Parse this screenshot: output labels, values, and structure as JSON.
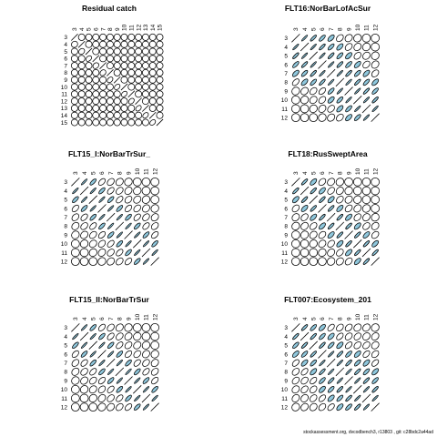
{
  "footer": "stockassessment.org, dvcodbench3, r13803 , git: c28bdc2a44ad",
  "colors": {
    "fill": "#8fc7dc",
    "stroke": "#000000"
  },
  "chart_data": [
    {
      "type": "correlation-matrix",
      "title": "Residual catch",
      "labels": [
        "3",
        "4",
        "5",
        "6",
        "7",
        "8",
        "9",
        "10",
        "11",
        "12",
        "13",
        "14",
        "15"
      ],
      "values": [
        [
          1,
          0,
          0,
          0,
          0,
          0,
          0,
          0,
          0,
          0,
          0,
          0,
          0
        ],
        [
          0.1,
          1,
          0,
          0,
          0,
          0,
          0,
          0,
          0,
          0,
          0,
          0,
          0
        ],
        [
          0,
          0.2,
          1,
          0,
          0,
          0,
          0,
          0,
          0,
          0,
          0,
          0,
          0
        ],
        [
          0,
          0,
          0.3,
          1,
          0,
          0,
          0,
          0,
          0,
          0,
          0,
          0,
          0
        ],
        [
          0,
          0,
          0,
          0.2,
          1,
          0,
          0,
          0,
          0,
          0,
          0,
          0,
          0
        ],
        [
          0,
          0,
          0,
          0,
          0.2,
          1,
          0,
          0,
          0,
          0,
          0,
          0,
          0
        ],
        [
          0,
          0,
          0,
          0,
          0,
          0.3,
          1,
          0,
          0,
          0,
          0,
          0,
          0
        ],
        [
          0,
          0,
          0,
          0,
          0,
          0,
          0.3,
          1,
          0,
          0,
          0,
          0,
          0
        ],
        [
          0,
          0,
          0,
          0,
          0,
          0,
          0,
          0.3,
          1,
          0,
          0,
          0,
          0
        ],
        [
          0,
          0,
          0,
          0,
          0,
          0,
          0,
          0,
          0.3,
          1,
          0,
          0,
          0
        ],
        [
          0,
          0,
          0,
          0,
          0,
          0,
          0,
          0,
          0,
          0.3,
          1,
          0,
          0
        ],
        [
          0,
          0,
          0,
          0,
          0,
          0,
          0,
          0,
          0,
          0,
          0.3,
          1,
          0
        ],
        [
          0,
          0,
          0,
          0,
          0,
          0,
          0,
          0,
          0,
          0,
          0,
          0.3,
          1
        ]
      ]
    },
    {
      "type": "correlation-matrix",
      "title": "FLT16:NorBarLofAcSur",
      "labels": [
        "3",
        "4",
        "5",
        "6",
        "7",
        "8",
        "9",
        "10",
        "11",
        "12"
      ],
      "values": [
        [
          1,
          0.8,
          0.7,
          0.6,
          0.5,
          0.3,
          0.2,
          0.1,
          0,
          0
        ],
        [
          0.8,
          1,
          0.8,
          0.7,
          0.6,
          0.5,
          0.3,
          0.2,
          0.1,
          0
        ],
        [
          0.7,
          0.8,
          1,
          0.8,
          0.7,
          0.6,
          0.5,
          0.3,
          0.2,
          0.1
        ],
        [
          0.6,
          0.7,
          0.8,
          1,
          0.8,
          0.7,
          0.6,
          0.5,
          0.3,
          0.2
        ],
        [
          0.5,
          0.6,
          0.7,
          0.8,
          1,
          0.8,
          0.7,
          0.6,
          0.5,
          0.3
        ],
        [
          0.4,
          0.5,
          0.6,
          0.7,
          0.8,
          1,
          0.8,
          0.7,
          0.6,
          0.5
        ],
        [
          0.1,
          0.2,
          0.3,
          0.4,
          0.6,
          0.8,
          1,
          0.8,
          0.7,
          0.6
        ],
        [
          0,
          0.1,
          0.2,
          0.3,
          0.5,
          0.6,
          0.8,
          1,
          0.8,
          0.7
        ],
        [
          0,
          0,
          0.1,
          0.2,
          0.3,
          0.5,
          0.6,
          0.8,
          1,
          0.8
        ],
        [
          0,
          0,
          0,
          0.1,
          0.2,
          0.3,
          0.5,
          0.6,
          0.8,
          1
        ]
      ]
    },
    {
      "type": "correlation-matrix",
      "title": "FLT15_I:NorBarTrSur_",
      "labels": [
        "3",
        "4",
        "5",
        "6",
        "7",
        "8",
        "9",
        "10",
        "11",
        "12"
      ],
      "values": [
        [
          1,
          0.8,
          0.6,
          0.4,
          0.3,
          0.2,
          0.1,
          0,
          0,
          0
        ],
        [
          0.8,
          1,
          0.8,
          0.6,
          0.4,
          0.3,
          0.2,
          0.1,
          0,
          0
        ],
        [
          0.6,
          0.8,
          1,
          0.8,
          0.6,
          0.4,
          0.3,
          0.2,
          0.1,
          0
        ],
        [
          0.4,
          0.6,
          0.8,
          1,
          0.8,
          0.6,
          0.4,
          0.3,
          0.2,
          0.1
        ],
        [
          0.3,
          0.4,
          0.6,
          0.8,
          1,
          0.8,
          0.6,
          0.4,
          0.3,
          0.2
        ],
        [
          0.2,
          0.3,
          0.4,
          0.6,
          0.8,
          1,
          0.8,
          0.6,
          0.4,
          0.3
        ],
        [
          0.1,
          0.2,
          0.3,
          0.4,
          0.6,
          0.8,
          1,
          0.8,
          0.6,
          0.4
        ],
        [
          0,
          0.1,
          0.2,
          0.3,
          0.4,
          0.6,
          0.8,
          1,
          0.8,
          0.6
        ],
        [
          0,
          0,
          0.1,
          0.2,
          0.3,
          0.4,
          0.6,
          0.8,
          1,
          0.8
        ],
        [
          0,
          0,
          0,
          0.1,
          0.2,
          0.3,
          0.4,
          0.6,
          0.8,
          1
        ]
      ]
    },
    {
      "type": "correlation-matrix",
      "title": "FLT18:RusSweptArea",
      "labels": [
        "3",
        "4",
        "5",
        "6",
        "7",
        "8",
        "9",
        "10",
        "11",
        "12"
      ],
      "values": [
        [
          1,
          0.7,
          0.5,
          0.3,
          0.2,
          0.1,
          0,
          0,
          0,
          0
        ],
        [
          0.7,
          1,
          0.7,
          0.5,
          0.3,
          0.2,
          0.1,
          0,
          0,
          0
        ],
        [
          0.5,
          0.7,
          1,
          0.7,
          0.5,
          0.3,
          0.2,
          0.1,
          0,
          0
        ],
        [
          0.3,
          0.5,
          0.7,
          1,
          0.7,
          0.5,
          0.3,
          0.2,
          0.1,
          0
        ],
        [
          0.2,
          0.3,
          0.5,
          0.7,
          1,
          0.7,
          0.5,
          0.3,
          0.2,
          0.1
        ],
        [
          0.1,
          0.2,
          0.3,
          0.5,
          0.7,
          1,
          0.7,
          0.5,
          0.3,
          0.2
        ],
        [
          0,
          0.1,
          0.2,
          0.3,
          0.5,
          0.7,
          1,
          0.7,
          0.5,
          0.3
        ],
        [
          0,
          0,
          0.1,
          0.2,
          0.3,
          0.5,
          0.7,
          1,
          0.7,
          0.5
        ],
        [
          0,
          0,
          0,
          0.1,
          0.2,
          0.3,
          0.5,
          0.7,
          1,
          0.7
        ],
        [
          0,
          0,
          0,
          0,
          0.1,
          0.2,
          0.3,
          0.5,
          0.7,
          1
        ]
      ]
    },
    {
      "type": "correlation-matrix",
      "title": "FLT15_II:NorBarTrSur",
      "labels": [
        "3",
        "4",
        "5",
        "6",
        "7",
        "8",
        "9",
        "10",
        "11",
        "12"
      ],
      "values": [
        [
          1,
          0.8,
          0.6,
          0.4,
          0.3,
          0.2,
          0.1,
          0,
          0,
          0
        ],
        [
          0.8,
          1,
          0.8,
          0.6,
          0.4,
          0.3,
          0.2,
          0.1,
          0,
          0
        ],
        [
          0.6,
          0.8,
          1,
          0.8,
          0.6,
          0.4,
          0.3,
          0.2,
          0.1,
          0
        ],
        [
          0.4,
          0.6,
          0.8,
          1,
          0.8,
          0.6,
          0.4,
          0.3,
          0.2,
          0.1
        ],
        [
          0.3,
          0.4,
          0.6,
          0.8,
          1,
          0.8,
          0.6,
          0.4,
          0.3,
          0.2
        ],
        [
          0.2,
          0.3,
          0.4,
          0.6,
          0.8,
          1,
          0.8,
          0.6,
          0.4,
          0.3
        ],
        [
          0.1,
          0.2,
          0.3,
          0.4,
          0.6,
          0.8,
          1,
          0.8,
          0.6,
          0.4
        ],
        [
          0,
          0.1,
          0.2,
          0.3,
          0.4,
          0.6,
          0.8,
          1,
          0.8,
          0.6
        ],
        [
          0,
          0,
          0.1,
          0.2,
          0.3,
          0.4,
          0.6,
          0.8,
          1,
          0.8
        ],
        [
          0,
          0,
          0,
          0.1,
          0.2,
          0.3,
          0.4,
          0.6,
          0.8,
          1
        ]
      ]
    },
    {
      "type": "correlation-matrix",
      "title": "FLT007:Ecosystem_201",
      "labels": [
        "3",
        "4",
        "5",
        "6",
        "7",
        "8",
        "9",
        "10",
        "11",
        "12"
      ],
      "values": [
        [
          1,
          0.7,
          0.6,
          0.5,
          0.4,
          0.3,
          0.3,
          0.2,
          0.2,
          0.1
        ],
        [
          0.7,
          1,
          0.7,
          0.6,
          0.5,
          0.4,
          0.3,
          0.3,
          0.2,
          0.2
        ],
        [
          0.6,
          0.7,
          1,
          0.7,
          0.6,
          0.5,
          0.4,
          0.3,
          0.3,
          0.2
        ],
        [
          0.5,
          0.6,
          0.7,
          1,
          0.8,
          0.7,
          0.6,
          0.5,
          0.4,
          0.3
        ],
        [
          0.4,
          0.5,
          0.6,
          0.8,
          1,
          0.8,
          0.7,
          0.6,
          0.5,
          0.4
        ],
        [
          0.3,
          0.4,
          0.5,
          0.7,
          0.8,
          1,
          0.8,
          0.7,
          0.6,
          0.5
        ],
        [
          0.3,
          0.3,
          0.4,
          0.6,
          0.7,
          0.8,
          1,
          0.8,
          0.7,
          0.6
        ],
        [
          0.2,
          0.3,
          0.3,
          0.5,
          0.6,
          0.7,
          0.8,
          1,
          0.8,
          0.7
        ],
        [
          0.2,
          0.2,
          0.3,
          0.4,
          0.5,
          0.6,
          0.7,
          0.8,
          1,
          0.8
        ],
        [
          0.1,
          0.2,
          0.2,
          0.3,
          0.4,
          0.5,
          0.6,
          0.7,
          0.8,
          1
        ]
      ]
    }
  ]
}
